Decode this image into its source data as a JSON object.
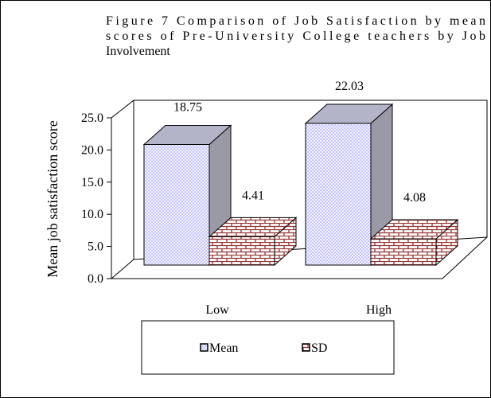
{
  "chart_data": {
    "type": "bar3d",
    "title": [
      "Figure 7 Comparison of  Job Satisfaction by mean",
      "scores of Pre-University College teachers by Job",
      "Involvement"
    ],
    "ylabel": "Mean job satisfaction score",
    "categories": [
      "Low",
      "High"
    ],
    "series": [
      {
        "name": "Mean",
        "color": "#8c8cff",
        "values": [
          18.75,
          22.03
        ]
      },
      {
        "name": "SD",
        "color": "#993333",
        "values": [
          4.41,
          4.08
        ]
      }
    ],
    "ylim": [
      0,
      25
    ],
    "yticks": [
      {
        "value": 0,
        "label": "0.0"
      },
      {
        "value": 5,
        "label": "5.0"
      },
      {
        "value": 10,
        "label": "10.0"
      },
      {
        "value": 15,
        "label": "15.0"
      },
      {
        "value": 20,
        "label": "20.0"
      },
      {
        "value": 25,
        "label": "25.0"
      }
    ],
    "legend": "bottom"
  }
}
